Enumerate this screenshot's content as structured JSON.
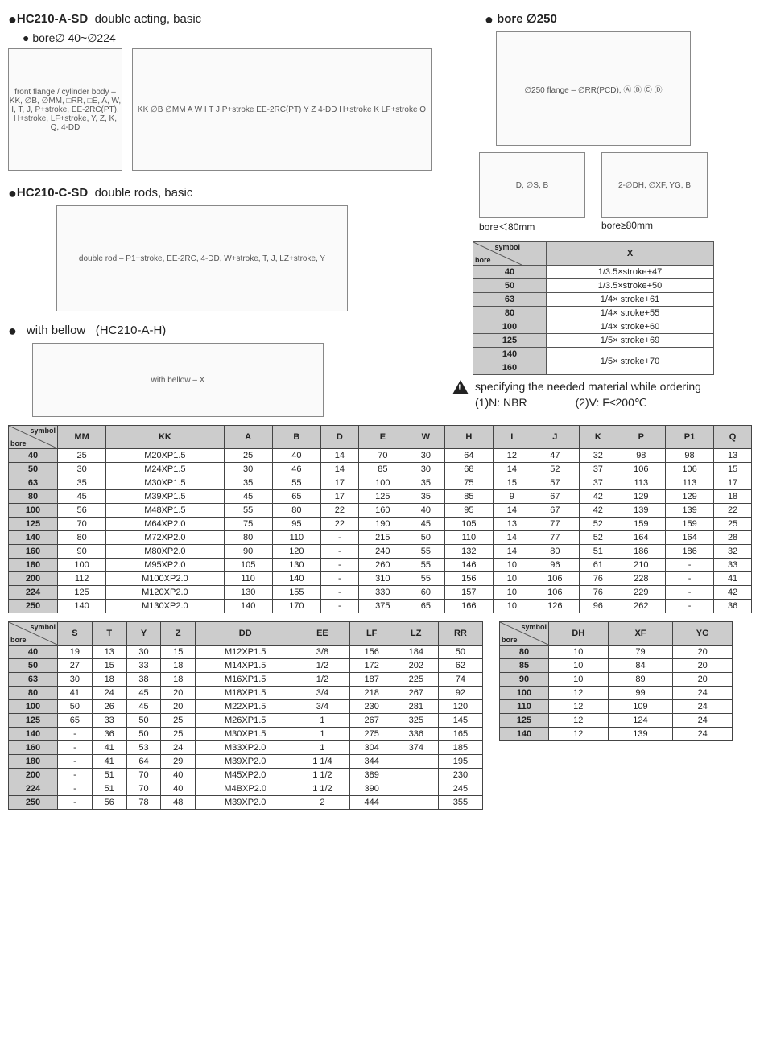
{
  "sec1": {
    "title": "HC210-A-SD",
    "desc": "double acting, basic",
    "sub": "bore∅ 40~∅224"
  },
  "sec2": {
    "title": "HC210-C-SD",
    "desc": "double rods, basic"
  },
  "sec3": {
    "title": "with bellow",
    "desc": "(HC210-A-H)"
  },
  "sec4": {
    "title": "bore ∅250",
    "cap1": "bore＜80mm",
    "cap2": "bore≥80mm"
  },
  "xtable": {
    "hdr_bore": "bore",
    "hdr_sym": "symbol",
    "hdr_x": "X",
    "rows": [
      [
        "40",
        "1/3.5×stroke+47"
      ],
      [
        "50",
        "1/3.5×stroke+50"
      ],
      [
        "63",
        "1/4× stroke+61"
      ],
      [
        "80",
        "1/4× stroke+55"
      ],
      [
        "100",
        "1/4× stroke+60"
      ],
      [
        "125",
        "1/5× stroke+69"
      ],
      [
        "140",
        "1/5× stroke+70"
      ],
      [
        "160",
        ""
      ]
    ]
  },
  "note": {
    "text": "specifying the needed material while ordering",
    "n1": "(1)N: NBR",
    "n2": "(2)V: F≤200℃"
  },
  "t1": {
    "cols": [
      "MM",
      "KK",
      "A",
      "B",
      "D",
      "E",
      "W",
      "H",
      "I",
      "J",
      "K",
      "P",
      "P1",
      "Q"
    ],
    "bores": [
      "40",
      "50",
      "63",
      "80",
      "100",
      "125",
      "140",
      "160",
      "180",
      "200",
      "224",
      "250"
    ],
    "rows": [
      [
        "25",
        "M20XP1.5",
        "25",
        "40",
        "14",
        "70",
        "30",
        "64",
        "12",
        "47",
        "32",
        "98",
        "98",
        "13"
      ],
      [
        "30",
        "M24XP1.5",
        "30",
        "46",
        "14",
        "85",
        "30",
        "68",
        "14",
        "52",
        "37",
        "106",
        "106",
        "15"
      ],
      [
        "35",
        "M30XP1.5",
        "35",
        "55",
        "17",
        "100",
        "35",
        "75",
        "15",
        "57",
        "37",
        "113",
        "113",
        "17"
      ],
      [
        "45",
        "M39XP1.5",
        "45",
        "65",
        "17",
        "125",
        "35",
        "85",
        "9",
        "67",
        "42",
        "129",
        "129",
        "18"
      ],
      [
        "56",
        "M48XP1.5",
        "55",
        "80",
        "22",
        "160",
        "40",
        "95",
        "14",
        "67",
        "42",
        "139",
        "139",
        "22"
      ],
      [
        "70",
        "M64XP2.0",
        "75",
        "95",
        "22",
        "190",
        "45",
        "105",
        "13",
        "77",
        "52",
        "159",
        "159",
        "25"
      ],
      [
        "80",
        "M72XP2.0",
        "80",
        "110",
        "-",
        "215",
        "50",
        "110",
        "14",
        "77",
        "52",
        "164",
        "164",
        "28"
      ],
      [
        "90",
        "M80XP2.0",
        "90",
        "120",
        "-",
        "240",
        "55",
        "132",
        "14",
        "80",
        "51",
        "186",
        "186",
        "32"
      ],
      [
        "100",
        "M95XP2.0",
        "105",
        "130",
        "-",
        "260",
        "55",
        "146",
        "10",
        "96",
        "61",
        "210",
        "-",
        "33"
      ],
      [
        "112",
        "M100XP2.0",
        "110",
        "140",
        "-",
        "310",
        "55",
        "156",
        "10",
        "106",
        "76",
        "228",
        "-",
        "41"
      ],
      [
        "125",
        "M120XP2.0",
        "130",
        "155",
        "-",
        "330",
        "60",
        "157",
        "10",
        "106",
        "76",
        "229",
        "-",
        "42"
      ],
      [
        "140",
        "M130XP2.0",
        "140",
        "170",
        "-",
        "375",
        "65",
        "166",
        "10",
        "126",
        "96",
        "262",
        "-",
        "36"
      ]
    ]
  },
  "t2": {
    "cols": [
      "S",
      "T",
      "Y",
      "Z",
      "DD",
      "EE",
      "LF",
      "LZ",
      "RR"
    ],
    "bores": [
      "40",
      "50",
      "63",
      "80",
      "100",
      "125",
      "140",
      "160",
      "180",
      "200",
      "224",
      "250"
    ],
    "rows": [
      [
        "19",
        "13",
        "30",
        "15",
        "M12XP1.5",
        "3/8",
        "156",
        "184",
        "50"
      ],
      [
        "27",
        "15",
        "33",
        "18",
        "M14XP1.5",
        "1/2",
        "172",
        "202",
        "62"
      ],
      [
        "30",
        "18",
        "38",
        "18",
        "M16XP1.5",
        "1/2",
        "187",
        "225",
        "74"
      ],
      [
        "41",
        "24",
        "45",
        "20",
        "M18XP1.5",
        "3/4",
        "218",
        "267",
        "92"
      ],
      [
        "50",
        "26",
        "45",
        "20",
        "M22XP1.5",
        "3/4",
        "230",
        "281",
        "120"
      ],
      [
        "65",
        "33",
        "50",
        "25",
        "M26XP1.5",
        "1",
        "267",
        "325",
        "145"
      ],
      [
        "-",
        "36",
        "50",
        "25",
        "M30XP1.5",
        "1",
        "275",
        "336",
        "165"
      ],
      [
        "-",
        "41",
        "53",
        "24",
        "M33XP2.0",
        "1",
        "304",
        "374",
        "185"
      ],
      [
        "-",
        "41",
        "64",
        "29",
        "M39XP2.0",
        "1 1/4",
        "344",
        "",
        "195"
      ],
      [
        "-",
        "51",
        "70",
        "40",
        "M45XP2.0",
        "1 1/2",
        "389",
        "",
        "230"
      ],
      [
        "-",
        "51",
        "70",
        "40",
        "M4BXP2.0",
        "1 1/2",
        "390",
        "",
        "245"
      ],
      [
        "-",
        "56",
        "78",
        "48",
        "M39XP2.0",
        "2",
        "444",
        "",
        "355"
      ]
    ]
  },
  "t3": {
    "cols": [
      "DH",
      "XF",
      "YG"
    ],
    "bores": [
      "80",
      "85",
      "90",
      "100",
      "110",
      "125",
      "140"
    ],
    "rows": [
      [
        "10",
        "79",
        "20"
      ],
      [
        "10",
        "84",
        "20"
      ],
      [
        "10",
        "89",
        "20"
      ],
      [
        "12",
        "99",
        "24"
      ],
      [
        "12",
        "109",
        "24"
      ],
      [
        "12",
        "124",
        "24"
      ],
      [
        "12",
        "139",
        "24"
      ]
    ]
  },
  "corner": {
    "bore": "bore",
    "symbol": "symbol"
  },
  "diag_labels": {
    "d1": "front flange / cylinder body – KK, ∅B, ∅MM, □RR, □E, A, W, I, T, J, P+stroke, EE-2RC(PT), H+stroke, LF+stroke, Y, Z, K, Q, 4-DD",
    "d2": "double rod – P1+stroke, EE-2RC, 4-DD, W+stroke, T, J, LZ+stroke, Y",
    "d3": "with bellow – X",
    "d4": "∅250 flange – ∅RR(PCD), Ⓐ Ⓑ Ⓒ Ⓓ",
    "d5": "D, ∅S, B",
    "d6": "2-∅DH, ∅XF, YG, B"
  }
}
